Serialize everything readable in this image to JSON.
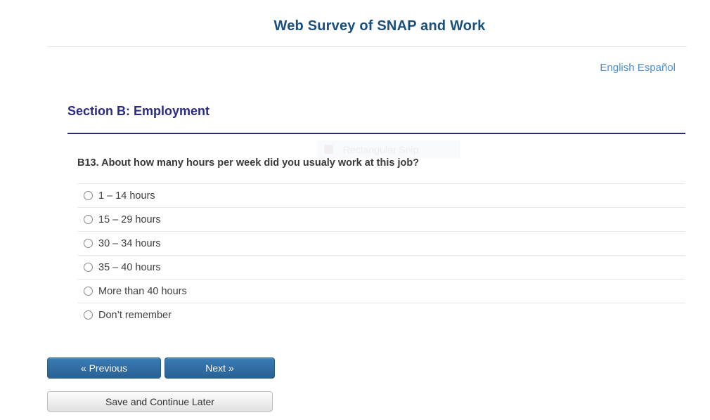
{
  "header": {
    "title": "Web Survey of SNAP and Work"
  },
  "language_links": {
    "english": "English",
    "espanol": "Español"
  },
  "section": {
    "heading": "Section B: Employment"
  },
  "snip_overlay": {
    "label": "Rectangular Snip"
  },
  "question": {
    "text": "B13. About how many hours per week did you usualy work at this job?",
    "options": [
      {
        "label": "1 – 14 hours",
        "selected": false
      },
      {
        "label": "15 – 29 hours",
        "selected": false
      },
      {
        "label": "30 – 34 hours",
        "selected": false
      },
      {
        "label": "35 – 40 hours",
        "selected": false
      },
      {
        "label": "More than 40 hours",
        "selected": false
      },
      {
        "label": "Don’t remember",
        "selected": false
      }
    ]
  },
  "buttons": {
    "previous": "« Previous",
    "next": "Next »",
    "save": "Save and Continue Later"
  },
  "colors": {
    "title_blue": "#194f7d",
    "section_navy": "#2a2a85",
    "link_blue": "#4a90d2",
    "button_blue_top": "#387db6",
    "button_blue_bottom": "#2a6193",
    "row_divider": "#e8e8e8"
  }
}
